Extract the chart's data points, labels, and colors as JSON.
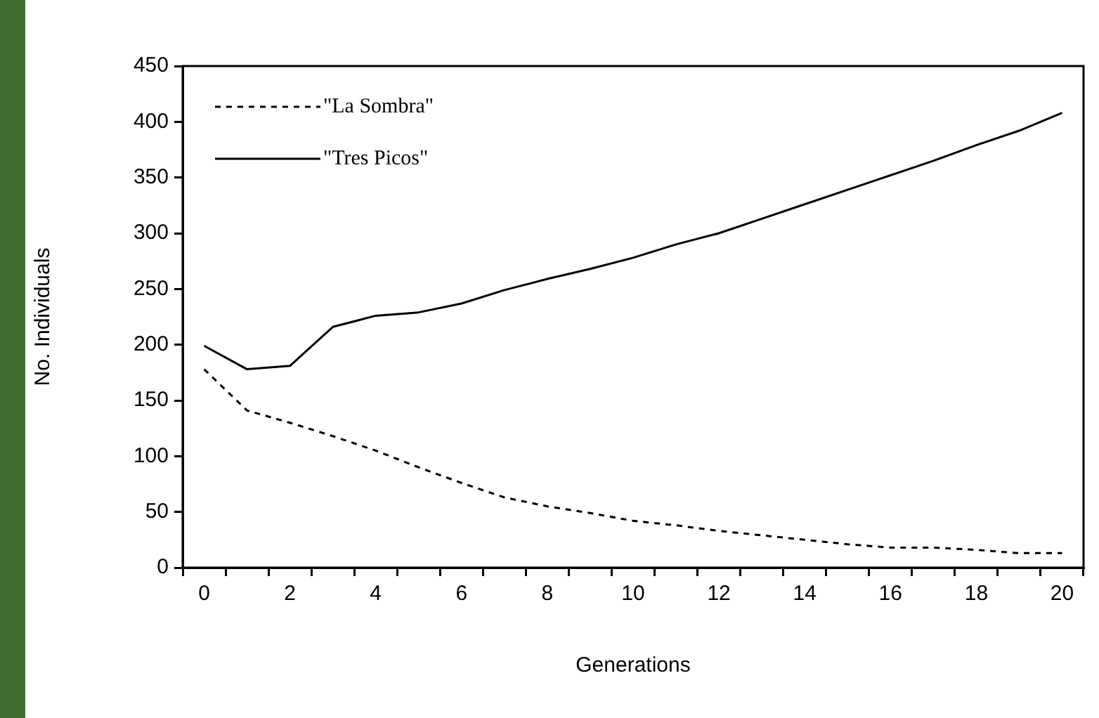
{
  "chart_data": {
    "type": "line",
    "xlabel": "Generations",
    "ylabel": "No. Individuals",
    "categories": [
      "0",
      null,
      "2",
      null,
      "4",
      null,
      "6",
      null,
      "8",
      null,
      "10",
      null,
      "12",
      null,
      "14",
      null,
      "16",
      null,
      "18",
      null,
      "20"
    ],
    "series": [
      {
        "name": "\"La Sombra\"",
        "color": "#000000",
        "line_style": "dashed",
        "values": [
          178,
          141,
          130,
          118,
          105,
          90,
          76,
          63,
          55,
          49,
          42,
          38,
          33,
          29,
          25,
          21,
          18,
          18,
          16,
          13,
          13
        ]
      },
      {
        "name": "\"Tres Picos\"",
        "color": "#000000",
        "line_style": "solid",
        "values": [
          199,
          178,
          181,
          216,
          226,
          229,
          237,
          249,
          259,
          268,
          278,
          290,
          300,
          313,
          326,
          339,
          352,
          365,
          379,
          392,
          408
        ]
      }
    ],
    "ylim": [
      0,
      450
    ],
    "yticks": [
      0,
      50,
      100,
      150,
      200,
      250,
      300,
      350,
      400,
      450
    ],
    "grid": false,
    "legend": "top left",
    "marker": "none"
  }
}
